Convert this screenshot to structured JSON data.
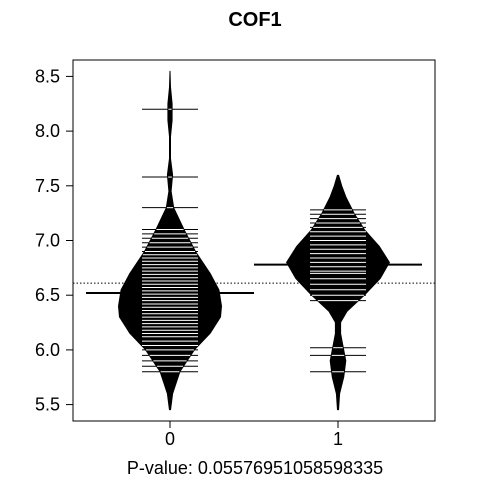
{
  "chart_data": {
    "type": "beanplot",
    "title": "COF1",
    "xlabel": "P-value: 0.0557695105859833⁨⁩5",
    "ylabel": "",
    "categories": [
      "0",
      "1"
    ],
    "ylim": [
      5.35,
      8.65
    ],
    "yticks": [
      5.5,
      6.0,
      6.5,
      7.0,
      7.5,
      8.0,
      8.5
    ],
    "ytick_labels": [
      "5.5",
      "6.0",
      "6.5",
      "7.0",
      "7.5",
      "8.0",
      "8.5"
    ],
    "overall_mean": 6.61,
    "groups": [
      {
        "name": "0",
        "mean": 6.52,
        "density": [
          [
            5.45,
            0.02
          ],
          [
            5.6,
            0.06
          ],
          [
            5.8,
            0.2
          ],
          [
            6.0,
            0.48
          ],
          [
            6.15,
            0.78
          ],
          [
            6.3,
            0.98
          ],
          [
            6.4,
            1.0
          ],
          [
            6.55,
            0.95
          ],
          [
            6.7,
            0.78
          ],
          [
            6.9,
            0.5
          ],
          [
            7.1,
            0.28
          ],
          [
            7.3,
            0.08
          ],
          [
            7.45,
            0.03
          ],
          [
            7.6,
            0.06
          ],
          [
            7.75,
            0.02
          ],
          [
            7.95,
            0.02
          ],
          [
            8.1,
            0.05
          ],
          [
            8.25,
            0.05
          ],
          [
            8.4,
            0.02
          ],
          [
            8.55,
            0.01
          ]
        ],
        "points": [
          5.8,
          5.85,
          5.9,
          5.95,
          6.0,
          6.04,
          6.08,
          6.12,
          6.15,
          6.18,
          6.21,
          6.24,
          6.27,
          6.3,
          6.33,
          6.36,
          6.39,
          6.42,
          6.45,
          6.48,
          6.51,
          6.54,
          6.57,
          6.6,
          6.63,
          6.66,
          6.69,
          6.72,
          6.75,
          6.78,
          6.81,
          6.84,
          6.87,
          6.9,
          6.94,
          6.98,
          7.02,
          7.06,
          7.1,
          7.3,
          7.58,
          8.2
        ]
      },
      {
        "name": "1",
        "mean": 6.78,
        "density": [
          [
            5.45,
            0.02
          ],
          [
            5.6,
            0.04
          ],
          [
            5.75,
            0.12
          ],
          [
            5.9,
            0.16
          ],
          [
            6.0,
            0.12
          ],
          [
            6.15,
            0.06
          ],
          [
            6.25,
            0.06
          ],
          [
            6.35,
            0.18
          ],
          [
            6.5,
            0.52
          ],
          [
            6.65,
            0.82
          ],
          [
            6.8,
            1.0
          ],
          [
            6.95,
            0.8
          ],
          [
            7.1,
            0.52
          ],
          [
            7.25,
            0.32
          ],
          [
            7.4,
            0.16
          ],
          [
            7.5,
            0.08
          ],
          [
            7.6,
            0.02
          ]
        ],
        "points": [
          5.8,
          5.95,
          6.02,
          6.45,
          6.5,
          6.55,
          6.6,
          6.65,
          6.7,
          6.72,
          6.76,
          6.8,
          6.84,
          6.88,
          6.92,
          6.96,
          7.0,
          7.04,
          7.08,
          7.12,
          7.16,
          7.2,
          7.24,
          7.28
        ]
      }
    ],
    "grid": false,
    "legend": "none"
  }
}
